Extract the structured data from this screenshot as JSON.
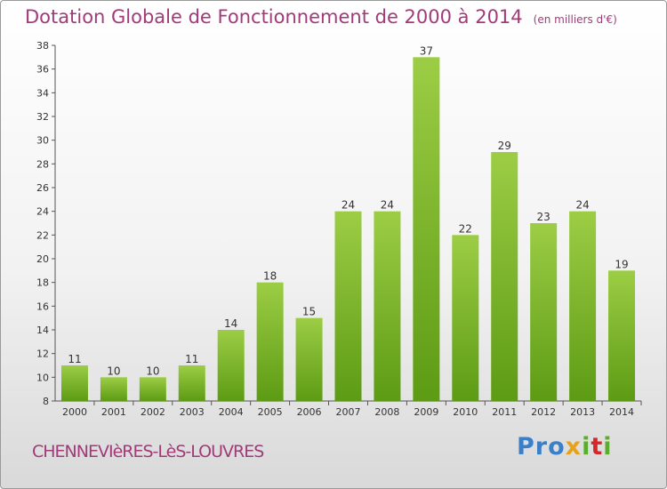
{
  "title": "Dotation Globale de Fonctionnement de 2000 à 2014",
  "unit": "(en milliers d'€)",
  "town": "CHENNEVIèRES-LèS-LOUVRES",
  "logo": {
    "p1": "Pro",
    "p2": "x",
    "p3": "i",
    "p4": "t",
    "p5": "i"
  },
  "colors": {
    "title": "#a23a7a",
    "bar_light": "#9ccd45",
    "bar_dark": "#5d9b14",
    "axis": "#555555"
  },
  "chart_data": {
    "type": "bar",
    "title": "Dotation Globale de Fonctionnement de 2000 à 2014",
    "categories": [
      "2000",
      "2001",
      "2002",
      "2003",
      "2004",
      "2005",
      "2006",
      "2007",
      "2008",
      "2009",
      "2010",
      "2011",
      "2012",
      "2013",
      "2014"
    ],
    "values": [
      11,
      10,
      10,
      11,
      14,
      18,
      15,
      24,
      24,
      37,
      22,
      29,
      23,
      24,
      19
    ],
    "ylim": [
      8,
      38
    ],
    "yticks": [
      8,
      10,
      12,
      14,
      16,
      18,
      20,
      22,
      24,
      26,
      28,
      30,
      32,
      34,
      36,
      38
    ],
    "grid": false,
    "data_labels": true
  }
}
